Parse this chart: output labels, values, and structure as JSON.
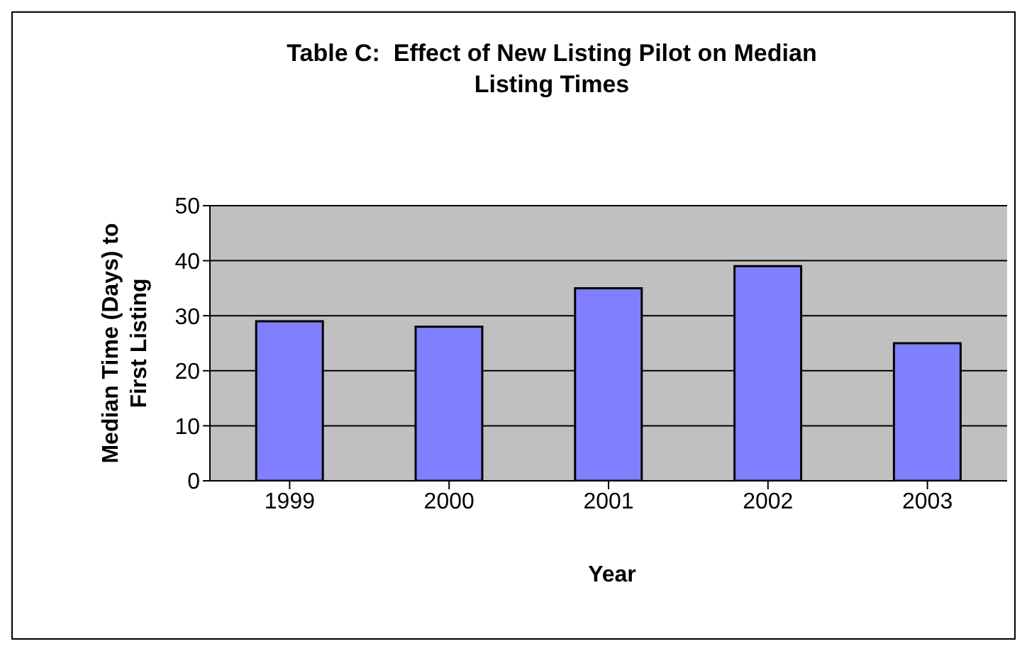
{
  "chart_data": {
    "type": "bar",
    "title": "Table C:  Effect of New Listing Pilot on Median Listing Times",
    "xlabel": "Year",
    "ylabel": "Median Time (Days) to First Listing",
    "categories": [
      "1999",
      "2000",
      "2001",
      "2002",
      "2003"
    ],
    "values": [
      29,
      28,
      35,
      39,
      25
    ],
    "color": "#8080ff",
    "ylim": [
      0,
      50
    ],
    "yticks": [
      0,
      10,
      20,
      30,
      40,
      50
    ],
    "grid": "y"
  }
}
